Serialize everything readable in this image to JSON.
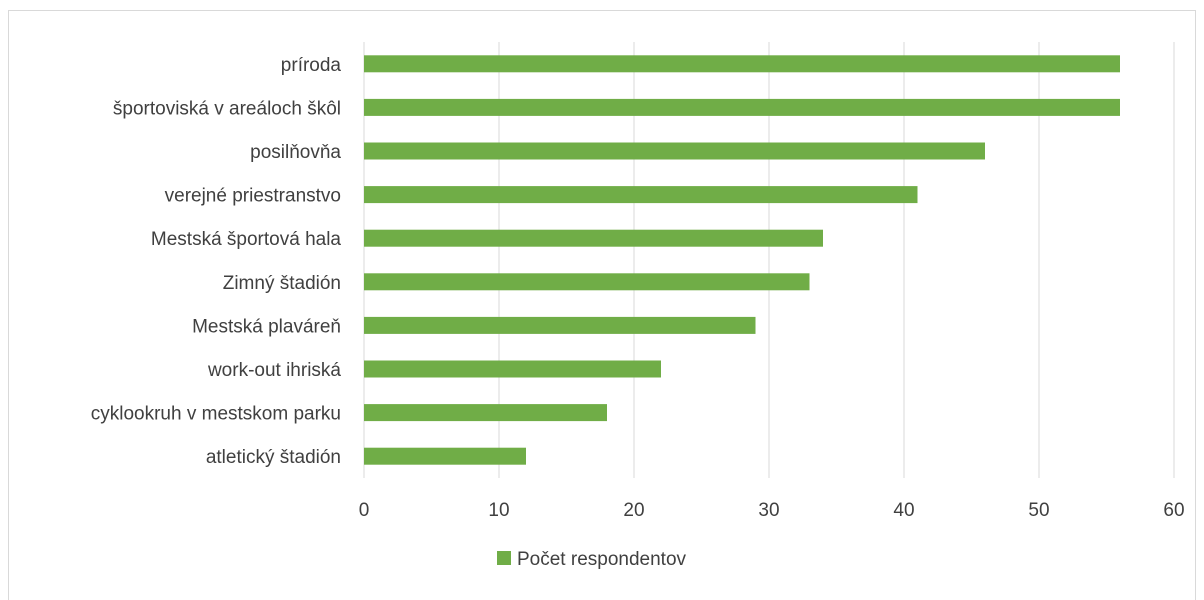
{
  "chart_data": {
    "type": "bar",
    "orientation": "horizontal",
    "categories": [
      "príroda",
      "športoviská v areáloch škôl",
      "posilňovňa",
      "verejné priestranstvo",
      "Mestská športová hala",
      "Zimný štadión",
      "Mestská plaváreň",
      "work-out ihriská",
      "cyklookruh v mestskom parku",
      "atletický štadión"
    ],
    "series": [
      {
        "name": "Počet respondentov",
        "values": [
          56,
          56,
          46,
          41,
          34,
          33,
          29,
          22,
          18,
          12
        ]
      }
    ],
    "xlim": [
      0,
      60
    ],
    "x_ticks": [
      0,
      10,
      20,
      30,
      40,
      50,
      60
    ],
    "x_tick_labels": [
      "0",
      "10",
      "20",
      "30",
      "40",
      "50",
      "60"
    ],
    "grid": "vertical",
    "legend": "bottom-center",
    "colors": {
      "bar": "#70ad47",
      "grid": "#d9d9d9",
      "text": "#404040"
    }
  }
}
